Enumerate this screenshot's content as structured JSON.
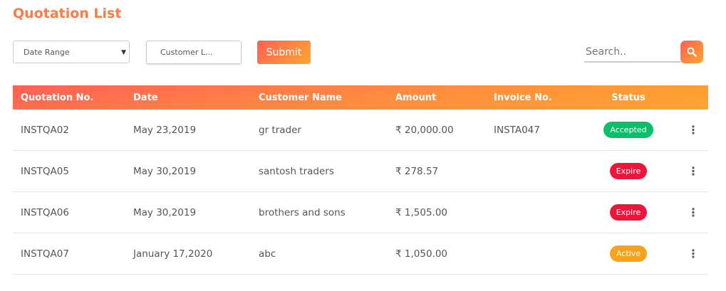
{
  "title": "Quotation List",
  "filters": {
    "date_range": "Date Range",
    "customer": "Customer L...",
    "submit": "Submit",
    "search_placeholder": "Search.."
  },
  "table": {
    "headers": [
      "Quotation No.",
      "Date",
      "Customer Name",
      "Amount",
      "Invoice No.",
      "Status"
    ],
    "rows": [
      {
        "no": "INSTQA02",
        "date": "May 23,2019",
        "customer": "gr trader",
        "amount": "₹ 20,000.00",
        "invoice": "INSTA047",
        "status": "Accepted",
        "color": "#0bbf6a"
      },
      {
        "no": "INSTQA05",
        "date": "May 30,2019",
        "customer": "santosh traders",
        "amount": "₹ 278.57",
        "invoice": "",
        "status": "Expire",
        "color": "#f0133a"
      },
      {
        "no": "INSTQA06",
        "date": "May 30,2019",
        "customer": "brothers and sons",
        "amount": "₹ 1,505.00",
        "invoice": "",
        "status": "Expire",
        "color": "#f0133a"
      },
      {
        "no": "INSTQA07",
        "date": "January 17,2020",
        "customer": "abc",
        "amount": "₹ 1,050.00",
        "invoice": "",
        "status": "Active",
        "color": "#f7a21b"
      }
    ]
  }
}
